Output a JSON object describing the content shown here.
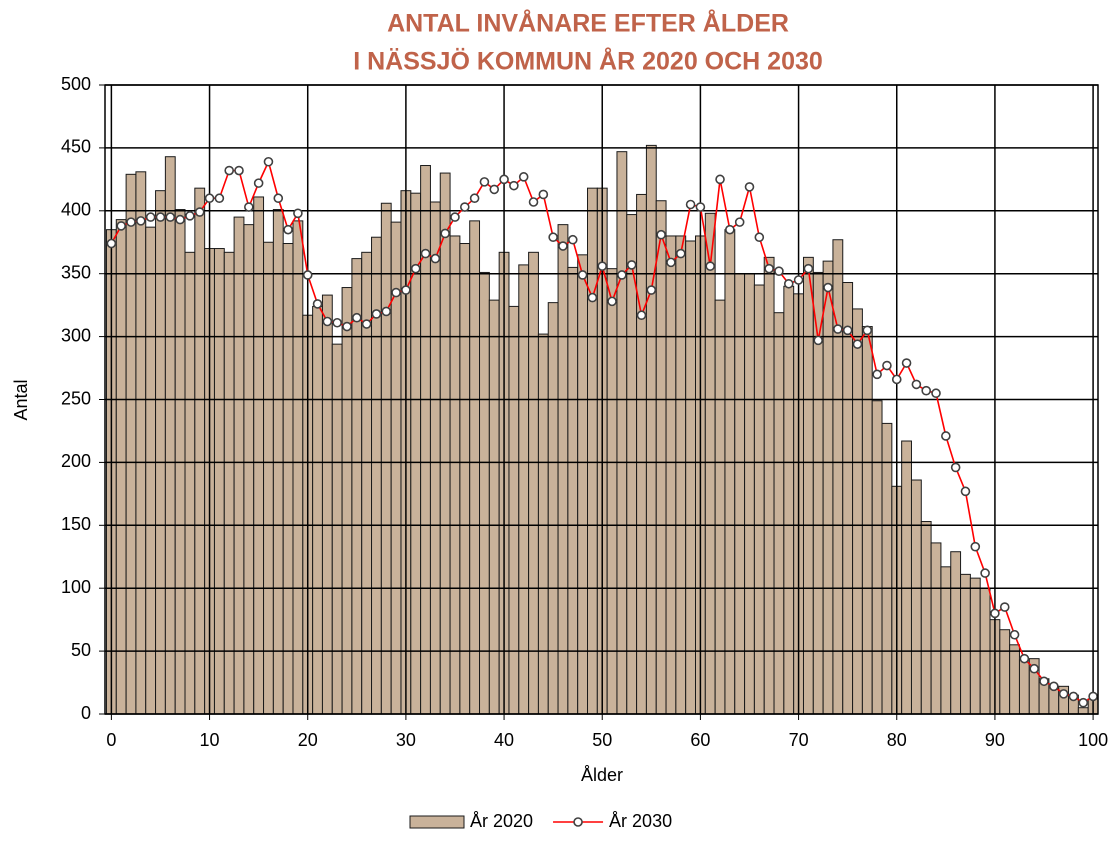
{
  "chart_data": {
    "type": "combo",
    "title": [
      "ANTAL INVÅNARE EFTER ÅLDER",
      "I NÄSSJÖ KOMMUN ÅR 2020 OCH 2030"
    ],
    "xlabel": "Ålder",
    "ylabel": "Antal",
    "x": [
      0,
      1,
      2,
      3,
      4,
      5,
      6,
      7,
      8,
      9,
      10,
      11,
      12,
      13,
      14,
      15,
      16,
      17,
      18,
      19,
      20,
      21,
      22,
      23,
      24,
      25,
      26,
      27,
      28,
      29,
      30,
      31,
      32,
      33,
      34,
      35,
      36,
      37,
      38,
      39,
      40,
      41,
      42,
      43,
      44,
      45,
      46,
      47,
      48,
      49,
      50,
      51,
      52,
      53,
      54,
      55,
      56,
      57,
      58,
      59,
      60,
      61,
      62,
      63,
      64,
      65,
      66,
      67,
      68,
      69,
      70,
      71,
      72,
      73,
      74,
      75,
      76,
      77,
      78,
      79,
      80,
      81,
      82,
      83,
      84,
      85,
      86,
      87,
      88,
      89,
      90,
      91,
      92,
      93,
      94,
      95,
      96,
      97,
      98,
      99,
      100
    ],
    "series": [
      {
        "name": "År 2020",
        "type": "bar",
        "color": "#c9b29a",
        "values": [
          385,
          393,
          429,
          431,
          387,
          416,
          443,
          401,
          367,
          418,
          370,
          370,
          367,
          395,
          389,
          411,
          375,
          401,
          374,
          392,
          317,
          324,
          333,
          294,
          339,
          362,
          367,
          379,
          406,
          391,
          416,
          414,
          436,
          407,
          430,
          380,
          374,
          392,
          351,
          329,
          367,
          324,
          357,
          367,
          302,
          327,
          389,
          355,
          365,
          418,
          418,
          354,
          447,
          397,
          413,
          452,
          408,
          380,
          380,
          376,
          380,
          398,
          329,
          385,
          350,
          350,
          341,
          363,
          319,
          340,
          334,
          363,
          351,
          360,
          377,
          343,
          322,
          308,
          249,
          231,
          181,
          217,
          186,
          153,
          136,
          117,
          129,
          111,
          108,
          100,
          75,
          67,
          55,
          43,
          44,
          28,
          22,
          22,
          15,
          5,
          12
        ]
      },
      {
        "name": "År 2030",
        "type": "line",
        "color": "#ff0000",
        "values": [
          374,
          388,
          391,
          392,
          395,
          395,
          395,
          393,
          396,
          399,
          410,
          410,
          432,
          432,
          403,
          422,
          439,
          410,
          385,
          398,
          349,
          326,
          312,
          311,
          308,
          315,
          310,
          318,
          320,
          335,
          337,
          354,
          366,
          362,
          382,
          395,
          403,
          410,
          423,
          417,
          425,
          420,
          427,
          407,
          413,
          379,
          372,
          377,
          349,
          331,
          356,
          328,
          349,
          357,
          317,
          337,
          381,
          359,
          366,
          405,
          403,
          356,
          425,
          385,
          391,
          419,
          379,
          354,
          352,
          342,
          345,
          354,
          297,
          339,
          306,
          305,
          294,
          305,
          270,
          277,
          266,
          279,
          262,
          257,
          255,
          221,
          196,
          177,
          133,
          112,
          80,
          85,
          63,
          44,
          36,
          26,
          22,
          16,
          14,
          9,
          14
        ]
      }
    ],
    "xlim": [
      -0.65,
      100.5
    ],
    "xticks": [
      0,
      10,
      20,
      30,
      40,
      50,
      60,
      70,
      80,
      90,
      100
    ],
    "ylim": [
      0,
      500
    ],
    "yticks": [
      0,
      50,
      100,
      150,
      200,
      250,
      300,
      350,
      400,
      450,
      500
    ],
    "grid": true,
    "legend": "bottom"
  }
}
